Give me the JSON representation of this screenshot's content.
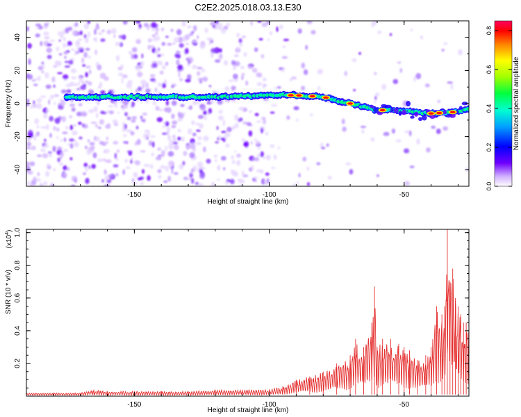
{
  "title": "C2E2.2025.018.03.13.E30",
  "chart_data": [
    {
      "type": "heatmap",
      "xlabel": "Height of straight line (km)",
      "ylabel": "Frequency (Hz)",
      "xlim": [
        -190,
        -26
      ],
      "ylim": [
        -50,
        50
      ],
      "xticks": [
        -150,
        -100,
        -50
      ],
      "yticks": [
        -40,
        -20,
        0,
        20,
        40
      ],
      "colorbar": {
        "label": "Normalized spectral amplitude",
        "range": [
          0.0,
          0.85
        ],
        "ticks": [
          0.0,
          0.2,
          0.4,
          0.6,
          0.8
        ],
        "colors": [
          "#ffffff",
          "#c9a0ff",
          "#7000ff",
          "#0000ff",
          "#00e8ff",
          "#00ff60",
          "#a0ff00",
          "#ffff00",
          "#ff8000",
          "#ff0000",
          "#ff0060"
        ]
      },
      "ridge": {
        "x": [
          -175,
          -160,
          -140,
          -120,
          -100,
          -90,
          -80,
          -70,
          -60,
          -50,
          -40,
          -30,
          -26
        ],
        "y": [
          4,
          4,
          4,
          4,
          5,
          5,
          4,
          0,
          -4,
          -4,
          -6,
          -5,
          -3
        ]
      }
    },
    {
      "type": "line",
      "xlabel": "Height of straight line (km)",
      "ylabel": "SNR (10 * v/v)",
      "scale_label": "(x10",
      "scale_exp": "4",
      "scale_close": ")",
      "xlim": [
        -190,
        -26
      ],
      "ylim": [
        0,
        1.02
      ],
      "xticks": [
        -150,
        -100,
        -50
      ],
      "yticks": [
        0.2,
        0.4,
        0.6,
        0.8,
        1.0
      ],
      "line_color": "#e53030",
      "series": [
        {
          "x": [
            -190,
            -180,
            -170,
            -165,
            -160,
            -150,
            -140,
            -130,
            -120,
            -110,
            -100,
            -95,
            -90,
            -85,
            -80,
            -75,
            -70,
            -68,
            -65,
            -62,
            -61,
            -60,
            -58,
            -55,
            -52,
            -50,
            -48,
            -45,
            -42,
            -40,
            -38,
            -36,
            -35,
            -34,
            -33,
            -32,
            -31,
            -30,
            -29,
            -28,
            -27,
            -26
          ],
          "y": [
            0.02,
            0.02,
            0.02,
            0.04,
            0.03,
            0.03,
            0.03,
            0.03,
            0.04,
            0.04,
            0.04,
            0.06,
            0.1,
            0.12,
            0.15,
            0.2,
            0.25,
            0.35,
            0.3,
            0.45,
            0.67,
            0.3,
            0.35,
            0.35,
            0.32,
            0.3,
            0.28,
            0.22,
            0.25,
            0.3,
            0.55,
            0.5,
            0.55,
            1.02,
            0.7,
            0.78,
            0.6,
            0.55,
            0.5,
            0.45,
            0.45,
            0.5
          ]
        }
      ]
    }
  ]
}
